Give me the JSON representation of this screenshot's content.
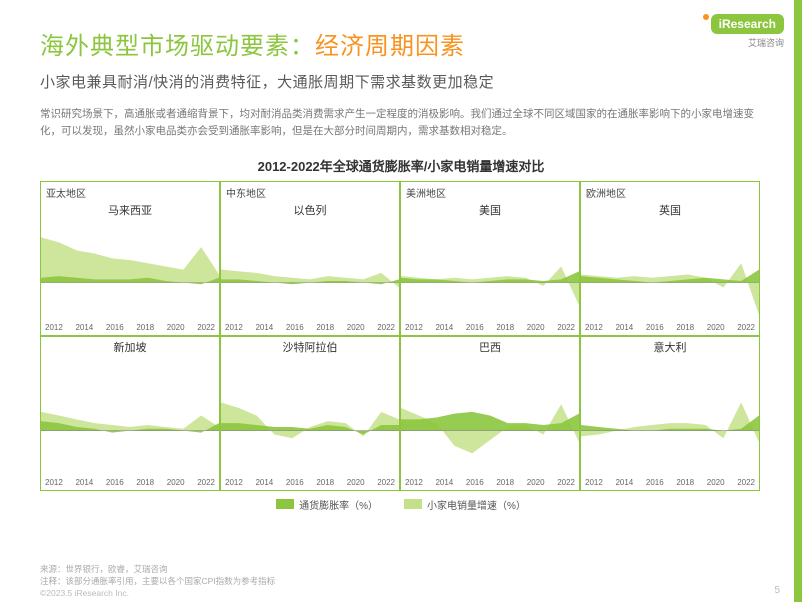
{
  "logo": {
    "brand": "iResearch",
    "sub": "艾瑞咨询"
  },
  "title": {
    "part1": "海外典型市场驱动要素：",
    "part2": "经济周期因素"
  },
  "subtitle": "小家电兼具耐消/快消的消费特征，大通胀周期下需求基数更加稳定",
  "body": "常识研究场景下，高通胀或者通缩背景下，均对耐消品类消费需求产生一定程度的消极影响。我们通过全球不同区域国家的在通胀率影响下的小家电增速变化，可以发现，虽然小家电品类亦会受到通胀率影响，但是在大部分时间周期内，需求基数相对稳定。",
  "chart_title": "2012-2022年全球通货膨胀率/小家电销量增速对比",
  "xticks": [
    "2012",
    "2014",
    "2016",
    "2018",
    "2020",
    "2022"
  ],
  "legend": {
    "a": {
      "label": "通货膨胀率（%）",
      "color": "#8cc63f"
    },
    "b": {
      "label": "小家电销量增速（%）",
      "color": "#c5e08b"
    }
  },
  "regions": [
    "亚太地区",
    "中东地区",
    "美洲地区",
    "欧洲地区"
  ],
  "styling": {
    "accent": "#8cc63f",
    "orange": "#f7931e",
    "series_a_color": "#8cc63f",
    "series_b_color": "#c5e08b",
    "panel_border": "#8cc63f",
    "background": "#ffffff",
    "grid_cols": 4,
    "grid_rows": 2,
    "plot_y_domain": [
      -25,
      40
    ],
    "axis_font_size": 8,
    "zero_line_color": "#888888"
  },
  "panels": [
    {
      "region": "亚太地区",
      "country": "马来西亚",
      "a": [
        3,
        4,
        3,
        2,
        2,
        2,
        3,
        1,
        0,
        -1,
        3
      ],
      "b": [
        28,
        25,
        20,
        18,
        15,
        14,
        12,
        10,
        8,
        22,
        5
      ]
    },
    {
      "region": "中东地区",
      "country": "以色列",
      "a": [
        2,
        2,
        1,
        0,
        -1,
        0,
        1,
        1,
        0,
        -1,
        2
      ],
      "b": [
        8,
        7,
        6,
        4,
        3,
        2,
        4,
        3,
        2,
        6,
        -3
      ]
    },
    {
      "region": "美洲地区",
      "country": "美国",
      "a": [
        3,
        2,
        2,
        1,
        0,
        1,
        2,
        2,
        1,
        2,
        7
      ],
      "b": [
        4,
        3,
        2,
        3,
        2,
        3,
        4,
        3,
        -2,
        10,
        -14
      ]
    },
    {
      "region": "欧洲地区",
      "country": "英国",
      "a": [
        4,
        3,
        2,
        1,
        0,
        1,
        2,
        3,
        2,
        1,
        8
      ],
      "b": [
        5,
        4,
        3,
        4,
        3,
        4,
        5,
        3,
        -3,
        12,
        -20
      ]
    },
    {
      "region": "",
      "country": "新加坡",
      "a": [
        5,
        4,
        2,
        1,
        -1,
        0,
        1,
        1,
        0,
        -1,
        4
      ],
      "b": [
        10,
        8,
        6,
        4,
        3,
        2,
        3,
        2,
        1,
        8,
        2
      ]
    },
    {
      "region": "",
      "country": "沙特阿拉伯",
      "a": [
        4,
        4,
        3,
        2,
        2,
        1,
        3,
        2,
        -2,
        3,
        3
      ],
      "b": [
        15,
        12,
        8,
        -2,
        -4,
        2,
        5,
        4,
        -3,
        10,
        6
      ]
    },
    {
      "region": "",
      "country": "巴西",
      "a": [
        6,
        6,
        7,
        9,
        10,
        8,
        4,
        4,
        3,
        4,
        9
      ],
      "b": [
        12,
        8,
        4,
        -8,
        -12,
        -5,
        2,
        3,
        -2,
        14,
        -6
      ]
    },
    {
      "region": "",
      "country": "意大利",
      "a": [
        3,
        2,
        1,
        0,
        0,
        1,
        1,
        1,
        0,
        1,
        8
      ],
      "b": [
        -3,
        -2,
        0,
        2,
        3,
        4,
        4,
        3,
        -4,
        15,
        -6
      ]
    }
  ],
  "footer": {
    "source": "来源：世界银行，欧睿，艾瑞咨询",
    "note": "注释：该部分通胀率引用，主要以各个国家CPI指数为参考指标",
    "copyright": "©2023.5 iResearch Inc.",
    "page": "5"
  }
}
